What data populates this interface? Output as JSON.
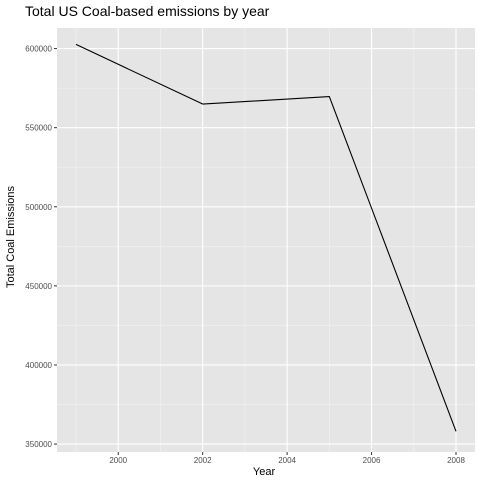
{
  "chart_data": {
    "type": "line",
    "title": "Total US Coal-based emissions by year",
    "xlabel": "Year",
    "ylabel": "Total Coal Emissions",
    "x": [
      1999,
      2002,
      2005,
      2008
    ],
    "series": [
      {
        "values": [
          602624,
          564940,
          569655,
          358086
        ]
      }
    ],
    "xlim": [
      1998.55,
      2008.45
    ],
    "ylim": [
      345000,
      613000
    ],
    "x_ticks": [
      2000,
      2002,
      2004,
      2006,
      2008
    ],
    "x_tick_labels": [
      "2000",
      "2002",
      "2004",
      "2006",
      "2008"
    ],
    "y_ticks": [
      350000,
      400000,
      450000,
      500000,
      550000,
      600000
    ],
    "y_tick_labels": [
      "350000",
      "400000",
      "450000",
      "500000",
      "550000",
      "600000"
    ],
    "grid": true,
    "legend": "none",
    "colors": {
      "panel_background": "#e5e5e5",
      "grid_major": "#ffffff",
      "grid_minor": "#f2f2f2",
      "line": "#000000",
      "tick": "#333333"
    }
  }
}
